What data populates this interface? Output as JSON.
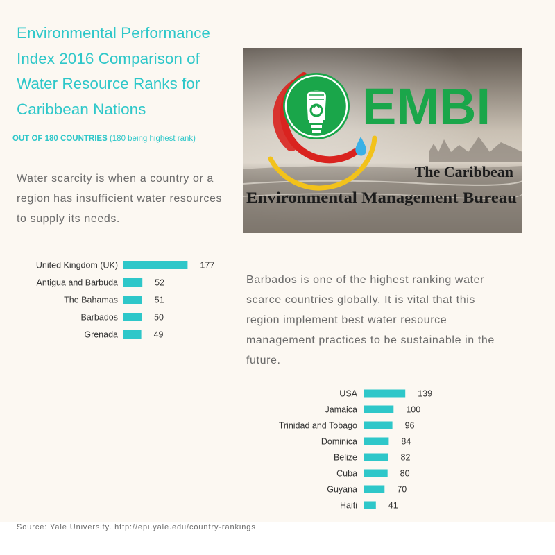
{
  "header": {
    "title": "Environmental Performance Index 2016 Comparison of Water Resource Ranks for Caribbean Nations",
    "subtitle_bold": "OUT OF 180 COUNTRIES",
    "subtitle_rest": " (180 being highest rank)"
  },
  "text": {
    "definition": "Water scarcity is when a country or a region has insufficient water resources to supply its needs.",
    "commentary": "Barbados is one of the highest ranking water scarce countries globally. It is vital that this region implement best water resource management practices to be sustainable in the future."
  },
  "logo": {
    "acronym": "EMBI",
    "line1": "The Caribbean",
    "line2": "Environmental Management Bureau"
  },
  "footer": {
    "source": "Source: Yale University. http://epi.yale.edu/country-rankings"
  },
  "colors": {
    "accent": "#2ec7c9",
    "bar": "#2ec7c9",
    "text": "#6b6b6b",
    "label": "#333333",
    "logo_green": "#1aa64a",
    "logo_red": "#d9231f",
    "logo_yellow": "#f2c21b"
  },
  "chart_data": [
    {
      "type": "bar",
      "orientation": "horizontal",
      "categories": [
        "United Kingdom (UK)",
        "Antigua and Barbuda",
        "The Bahamas",
        "Barbados",
        "Grenada"
      ],
      "values": [
        177,
        52,
        51,
        50,
        49
      ],
      "xlim": [
        0,
        180
      ]
    },
    {
      "type": "bar",
      "orientation": "horizontal",
      "categories": [
        "USA",
        "Jamaica",
        "Trinidad and Tobago",
        "Dominica",
        "Belize",
        "Cuba",
        "Guyana",
        "Haiti"
      ],
      "values": [
        139,
        100,
        96,
        84,
        82,
        80,
        70,
        41
      ],
      "xlim": [
        0,
        180
      ]
    }
  ]
}
